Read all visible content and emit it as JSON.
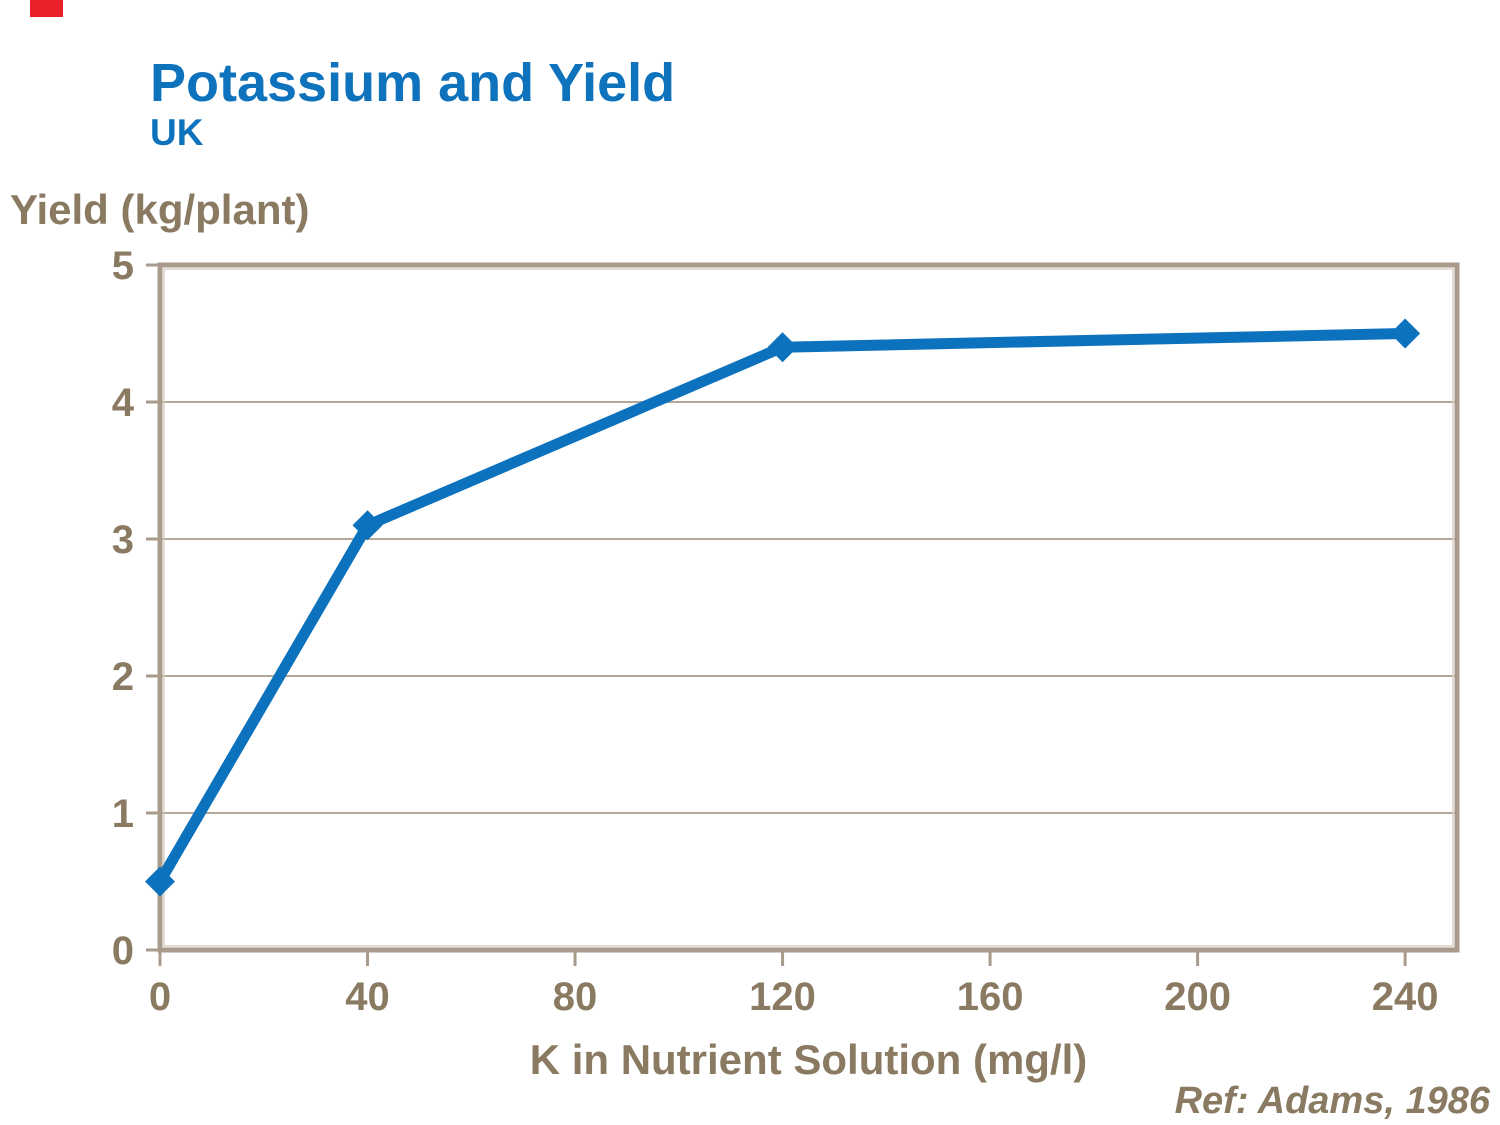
{
  "slide": {
    "title": "Potassium and Yield",
    "subtitle": "UK",
    "reference": "Ref: Adams, 1986"
  },
  "theme": {
    "accent_color": "#e8212b",
    "title_color": "#0e72bc",
    "text_color": "#8a7a62",
    "axis_color": "#a89b8b",
    "axis_highlight_color": "#d9d1c7",
    "gridline_color": "#b3a797",
    "line_color": "#0d72be"
  },
  "chart_data": {
    "type": "line",
    "title": "Potassium and Yield",
    "subtitle": "UK",
    "xlabel": "K in Nutrient Solution (mg/l)",
    "ylabel": "Yield (kg/plant)",
    "x": [
      0,
      40,
      120,
      240
    ],
    "y": [
      0.5,
      3.1,
      4.4,
      4.5
    ],
    "x_ticks": [
      0,
      40,
      80,
      120,
      160,
      200,
      240
    ],
    "y_ticks": [
      0,
      1,
      2,
      3,
      4,
      5
    ],
    "xlim": [
      0,
      250
    ],
    "ylim": [
      0,
      5
    ],
    "grid": "horizontal",
    "legend": "none",
    "marker": "diamond",
    "annotation": "Ref: Adams, 1986"
  }
}
